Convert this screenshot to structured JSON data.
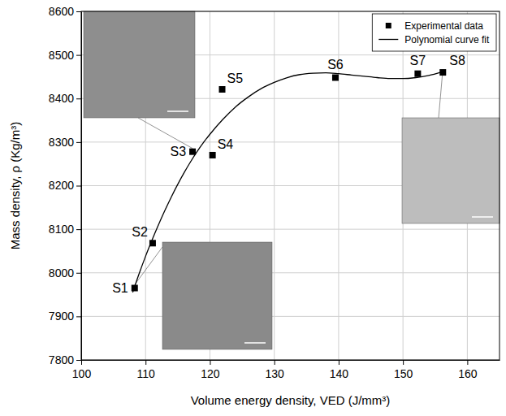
{
  "chart_data": {
    "type": "scatter",
    "x_label": "Volume energy density, VED (J/mm³)",
    "y_label": "Mass density, ρ (Kg/m³)",
    "xlim": [
      100,
      165
    ],
    "ylim": [
      7800,
      8600
    ],
    "xticks": [
      100,
      110,
      120,
      130,
      140,
      150,
      160
    ],
    "yticks": [
      7800,
      7900,
      8000,
      8100,
      8200,
      8300,
      8400,
      8500,
      8600
    ],
    "grid": true,
    "legend": "upper right",
    "series": [
      {
        "name": "Experimental data",
        "type": "scatter",
        "marker": "square",
        "color": "#000000",
        "x": [
          108.3,
          111.1,
          117.3,
          120.4,
          121.9,
          139.5,
          152.3,
          156.2
        ],
        "values": [
          7965,
          8068,
          8278,
          8270,
          8421,
          8448,
          8457,
          8460
        ],
        "labels": [
          "S1",
          "S2",
          "S3",
          "S4",
          "S5",
          "S6",
          "S7",
          "S8"
        ]
      },
      {
        "name": "Polynomial curve fit",
        "type": "line",
        "line_style": "solid",
        "color": "#000000",
        "x": [
          108,
          109,
          110,
          111,
          112,
          113,
          114,
          115,
          116,
          117,
          118,
          119,
          120,
          122,
          124,
          126,
          128,
          130,
          132,
          134,
          136,
          138,
          140,
          142,
          144,
          146,
          148,
          150,
          152,
          154,
          156
        ],
        "values": [
          7955,
          7998,
          8038,
          8075,
          8110,
          8143,
          8174,
          8203,
          8230,
          8255,
          8278,
          8299,
          8318,
          8352,
          8381,
          8404,
          8423,
          8437,
          8448,
          8455,
          8458,
          8459,
          8457,
          8454,
          8451,
          8448,
          8446,
          8446,
          8448,
          8453,
          8461
        ]
      }
    ]
  }
}
